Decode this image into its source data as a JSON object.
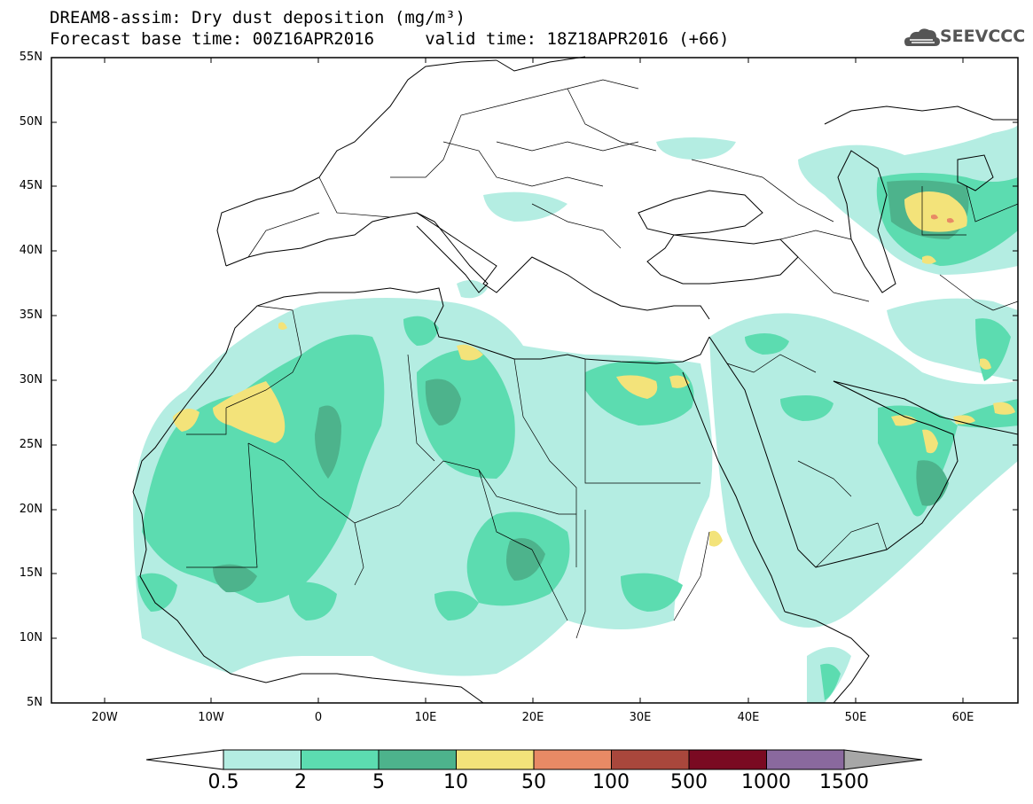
{
  "header": {
    "title_line1": "DREAM8-assim: Dry dust deposition (mg/m³)",
    "title_line2": "Forecast base time: 00Z16APR2016     valid time: 18Z18APR2016 (+66)",
    "logo_text": "SEEVCCC",
    "logo_icon": "cloud-logo-icon"
  },
  "map": {
    "lon_range": [
      -25,
      65
    ],
    "lat_range": [
      5,
      55
    ],
    "lat_labels": [
      "55N",
      "50N",
      "45N",
      "40N",
      "35N",
      "30N",
      "25N",
      "20N",
      "15N",
      "10N",
      "5N"
    ],
    "lon_labels": [
      "20W",
      "10W",
      "0",
      "10E",
      "20E",
      "30E",
      "40E",
      "50E",
      "60E"
    ]
  },
  "legend": {
    "labels": [
      "0.5",
      "2",
      "5",
      "10",
      "50",
      "100",
      "500",
      "1000",
      "1500"
    ],
    "colors": [
      "#b4ede2",
      "#5cdcb0",
      "#4db38c",
      "#f3e37a",
      "#e88a65",
      "#a9473c",
      "#7a0a22",
      "#8a699e"
    ],
    "under_color": "#ffffff",
    "over_color": "#a7a7a7"
  },
  "colors": {
    "border": "#000000",
    "background": "#ffffff"
  }
}
